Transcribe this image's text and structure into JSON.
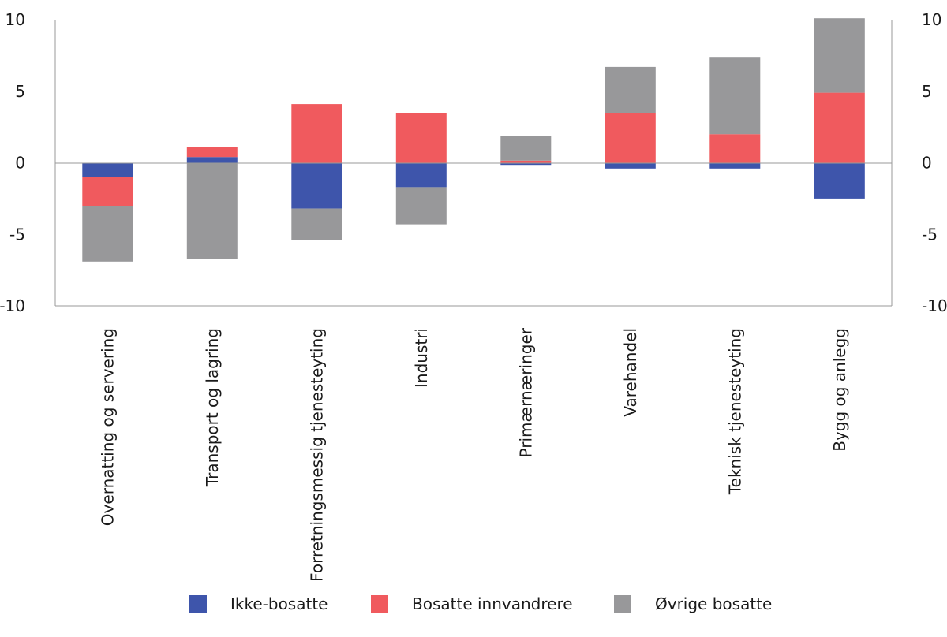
{
  "chart_data": {
    "type": "bar",
    "stacked": true,
    "categories": [
      "Overnatting og servering",
      "Transport og lagring",
      "Forretningsmessig tjenesteyting",
      "Industri",
      "Primærnæringer",
      "Varehandel",
      "Teknisk tjenesteyting",
      "Bygg og anlegg"
    ],
    "series": [
      {
        "name": "Ikke-bosatte",
        "color": "#3e55ab",
        "values": [
          -1.0,
          0.4,
          -3.2,
          -1.7,
          -0.15,
          -0.4,
          -0.4,
          -2.5
        ]
      },
      {
        "name": "Bosatte innvandrere",
        "color": "#f05a5e",
        "values": [
          -2.0,
          0.7,
          4.1,
          3.5,
          0.15,
          3.5,
          2.0,
          4.9
        ]
      },
      {
        "name": "Øvrige bosatte",
        "color": "#98989a",
        "values": [
          -3.9,
          -6.7,
          -2.2,
          -2.6,
          1.7,
          3.2,
          5.4,
          5.2
        ]
      }
    ],
    "ylim": [
      -10,
      10
    ],
    "yticks": [
      -10,
      -5,
      0,
      5,
      10
    ],
    "axes": "left-and-right",
    "grid": false,
    "legend_position": "bottom"
  }
}
